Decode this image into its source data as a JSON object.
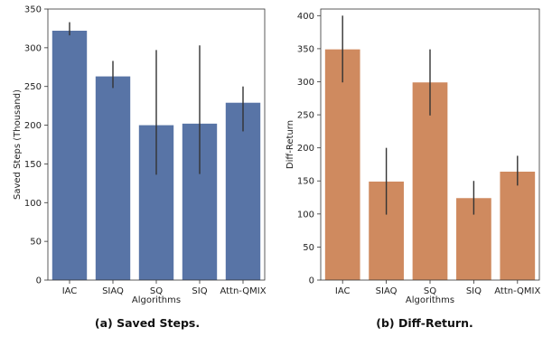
{
  "chart_data": [
    {
      "type": "bar",
      "caption": "(a) Saved Steps.",
      "xlabel": "Algorithms",
      "ylabel": "Saved Steps (Thousand)",
      "categories": [
        "IAC",
        "SIAQ",
        "SQ",
        "SIQ",
        "Attn-QMIX"
      ],
      "values": [
        322,
        263,
        200,
        202,
        229
      ],
      "err_low": [
        316,
        248,
        136,
        137,
        192
      ],
      "err_high": [
        333,
        283,
        297,
        303,
        250
      ],
      "ylim": [
        0,
        350
      ],
      "yticks": [
        0,
        50,
        100,
        150,
        200,
        250,
        300,
        350
      ],
      "color": "#5874a6",
      "grid": false
    },
    {
      "type": "bar",
      "caption": "(b) Diff-Return.",
      "xlabel": "Algorithms",
      "ylabel": "Diff-Return",
      "categories": [
        "IAC",
        "SIAQ",
        "SQ",
        "SIQ",
        "Attn-QMIX"
      ],
      "values": [
        349,
        149,
        299,
        124,
        164
      ],
      "err_low": [
        299,
        99,
        249,
        99,
        143
      ],
      "err_high": [
        400,
        200,
        349,
        150,
        188
      ],
      "ylim": [
        0,
        410
      ],
      "yticks": [
        0,
        50,
        100,
        150,
        200,
        250,
        300,
        350,
        400
      ],
      "color": "#cf8a5f",
      "grid": false
    }
  ]
}
